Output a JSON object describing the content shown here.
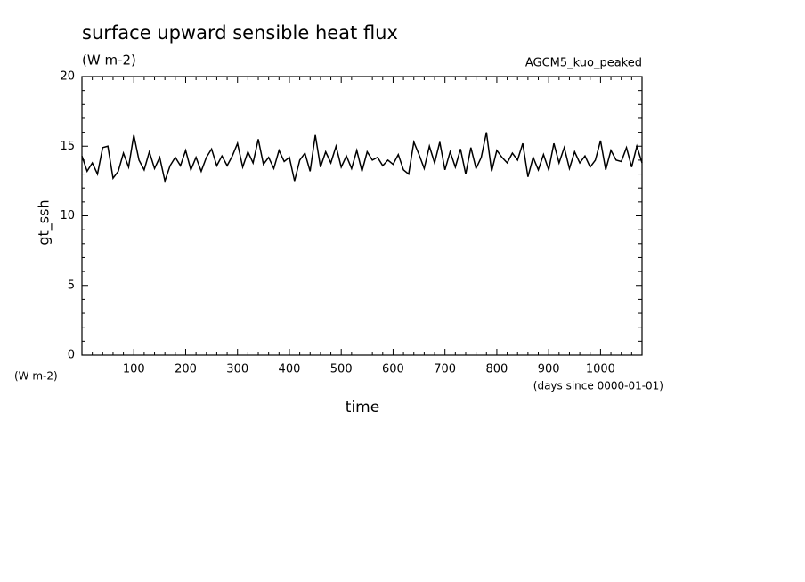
{
  "chart_data": {
    "type": "line",
    "title": "surface upward sensible heat flux",
    "subtitle": "(W m-2)",
    "annotation": "AGCM5_kuo_peaked",
    "ylabel": "gt_ssh",
    "yunits": "(W m-2)",
    "xlabel": "time",
    "xunits": "(days since 0000-01-01)",
    "xlim": [
      0,
      1080
    ],
    "ylim": [
      0,
      20
    ],
    "xticks": [
      100,
      200,
      300,
      400,
      500,
      600,
      700,
      800,
      900,
      1000
    ],
    "yticks": [
      0,
      5,
      10,
      15,
      20
    ],
    "xminorticks": [
      20,
      40,
      60,
      80,
      120,
      140,
      160,
      180,
      220,
      240,
      260,
      280,
      320,
      340,
      360,
      380,
      420,
      440,
      460,
      480,
      520,
      540,
      560,
      580,
      620,
      640,
      660,
      680,
      720,
      740,
      760,
      780,
      820,
      840,
      860,
      880,
      920,
      940,
      960,
      980,
      1020,
      1040,
      1060
    ],
    "yminorticks": [
      1,
      2,
      3,
      4,
      6,
      7,
      8,
      9,
      11,
      12,
      13,
      14,
      16,
      17,
      18,
      19
    ],
    "x": [
      0,
      10,
      20,
      30,
      40,
      50,
      60,
      70,
      80,
      90,
      100,
      110,
      120,
      130,
      140,
      150,
      160,
      170,
      180,
      190,
      200,
      210,
      220,
      230,
      240,
      250,
      260,
      270,
      280,
      290,
      300,
      310,
      320,
      330,
      340,
      350,
      360,
      370,
      380,
      390,
      400,
      410,
      420,
      430,
      440,
      450,
      460,
      470,
      480,
      490,
      500,
      510,
      520,
      530,
      540,
      550,
      560,
      570,
      580,
      590,
      600,
      610,
      620,
      630,
      640,
      650,
      660,
      670,
      680,
      690,
      700,
      710,
      720,
      730,
      740,
      750,
      760,
      770,
      780,
      790,
      800,
      810,
      820,
      830,
      840,
      850,
      860,
      870,
      880,
      890,
      900,
      910,
      920,
      930,
      940,
      950,
      960,
      970,
      980,
      990,
      1000,
      1010,
      1020,
      1030,
      1040,
      1050,
      1060,
      1070,
      1080
    ],
    "series": [
      {
        "name": "gt_ssh",
        "color": "#000000",
        "values": [
          14.3,
          13.2,
          13.8,
          13.0,
          14.9,
          15.0,
          12.7,
          13.2,
          14.5,
          13.5,
          15.8,
          14.0,
          13.3,
          14.6,
          13.4,
          14.2,
          12.5,
          13.6,
          14.2,
          13.6,
          14.7,
          13.3,
          14.2,
          13.2,
          14.2,
          14.8,
          13.6,
          14.3,
          13.6,
          14.3,
          15.2,
          13.5,
          14.6,
          13.8,
          15.5,
          13.7,
          14.2,
          13.4,
          14.7,
          13.9,
          14.2,
          12.5,
          14.0,
          14.5,
          13.2,
          15.8,
          13.5,
          14.6,
          13.8,
          15.0,
          13.5,
          14.3,
          13.4,
          14.7,
          13.2,
          14.6,
          14.0,
          14.2,
          13.6,
          14.0,
          13.7,
          14.4,
          13.3,
          13.0,
          15.3,
          14.4,
          13.4,
          15.0,
          13.8,
          15.3,
          13.3,
          14.6,
          13.5,
          14.8,
          13.0,
          14.9,
          13.4,
          14.2,
          16.0,
          13.2,
          14.7,
          14.2,
          13.8,
          14.5,
          14.0,
          15.2,
          12.8,
          14.2,
          13.3,
          14.4,
          13.3,
          15.2,
          13.8,
          14.9,
          13.4,
          14.6,
          13.8,
          14.3,
          13.5,
          14.0,
          15.4,
          13.3,
          14.7,
          14.0,
          13.9,
          14.9,
          13.5,
          15.0,
          13.8
        ]
      }
    ]
  }
}
